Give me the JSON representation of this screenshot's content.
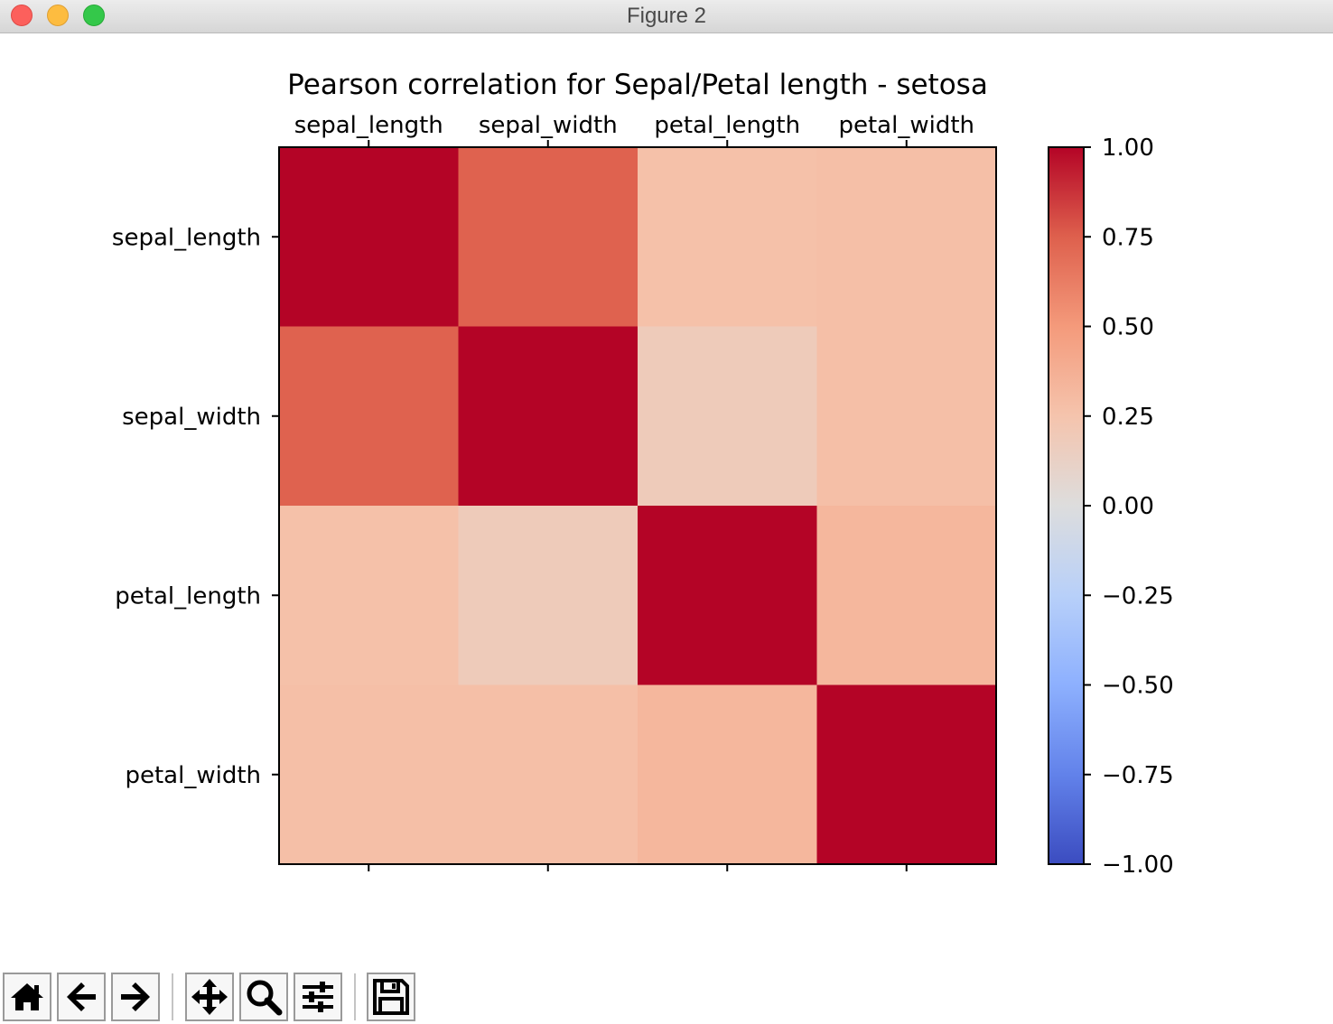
{
  "window": {
    "title": "Figure 2"
  },
  "toolbar": {
    "buttons": [
      {
        "name": "home",
        "icon": "home-icon"
      },
      {
        "name": "back",
        "icon": "arrow-left-icon"
      },
      {
        "name": "forward",
        "icon": "arrow-right-icon"
      },
      {
        "name": "pan",
        "icon": "move-icon"
      },
      {
        "name": "zoom",
        "icon": "magnifier-icon"
      },
      {
        "name": "configure-subplots",
        "icon": "sliders-icon"
      },
      {
        "name": "save",
        "icon": "floppy-disk-icon"
      }
    ]
  },
  "chart_data": {
    "type": "heatmap",
    "title": "Pearson correlation for Sepal/Petal length - setosa",
    "labels": [
      "sepal_length",
      "sepal_width",
      "petal_length",
      "petal_width"
    ],
    "values": [
      [
        1.0,
        0.74,
        0.27,
        0.28
      ],
      [
        0.74,
        1.0,
        0.18,
        0.28
      ],
      [
        0.27,
        0.18,
        1.0,
        0.33
      ],
      [
        0.28,
        0.28,
        0.33,
        1.0
      ]
    ],
    "colormap": "coolwarm",
    "vmin": -1.0,
    "vmax": 1.0,
    "colorbar_ticks": [
      1.0,
      0.75,
      0.5,
      0.25,
      0.0,
      -0.25,
      -0.5,
      -0.75,
      -1.0
    ],
    "colorbar_tick_labels": [
      "1.00",
      "0.75",
      "0.50",
      "0.25",
      "0.00",
      "−0.25",
      "−0.50",
      "−0.75",
      "−1.00"
    ]
  }
}
